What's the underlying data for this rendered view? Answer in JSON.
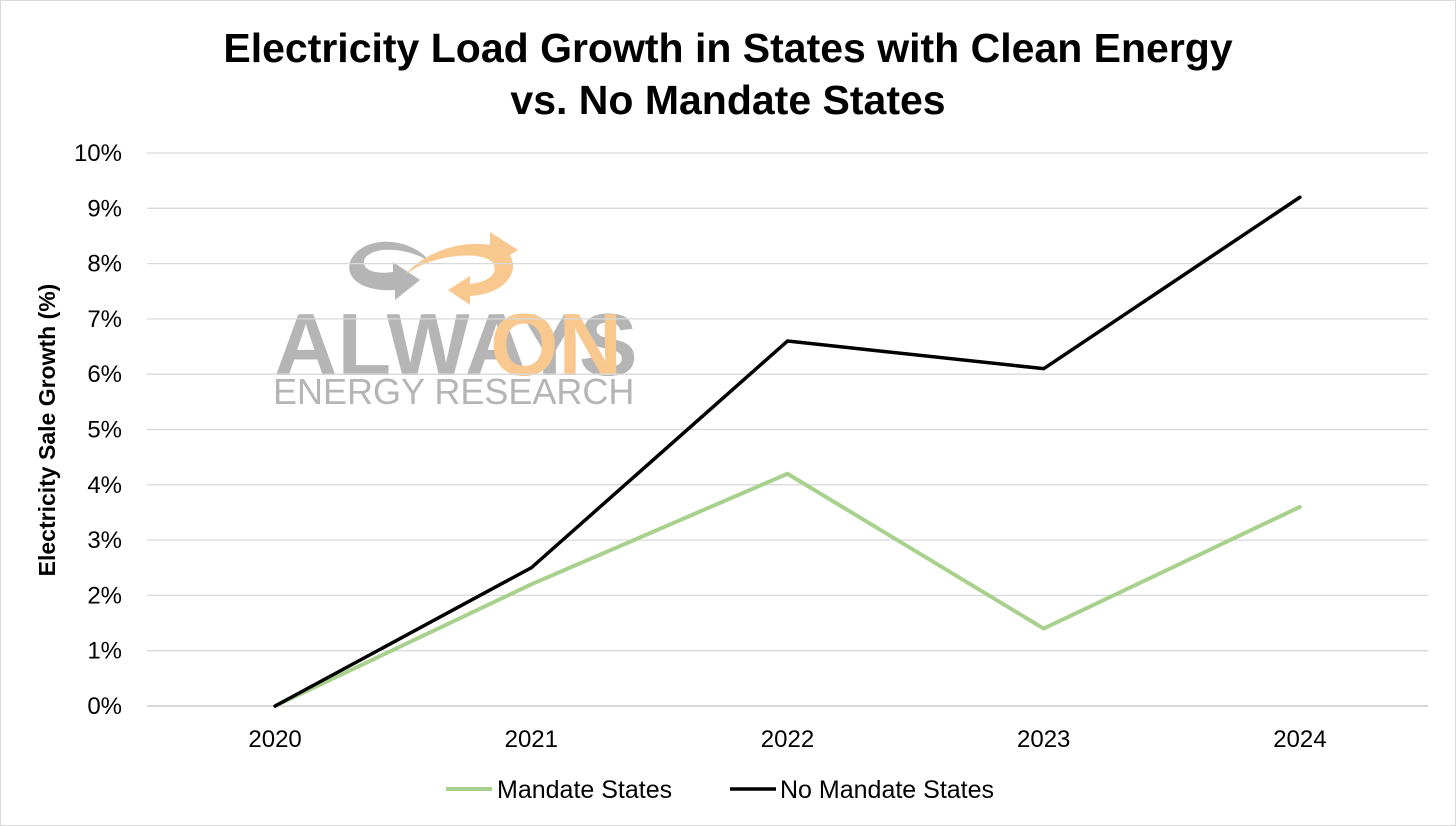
{
  "chart_data": {
    "type": "line",
    "title_line1": "Electricity Load Growth in States with Clean Energy",
    "title_line2": "vs. No Mandate States",
    "xlabel": "",
    "ylabel": "Electricity Sale Growth (%)",
    "categories": [
      "2020",
      "2021",
      "2022",
      "2023",
      "2024"
    ],
    "ylim": [
      0,
      10
    ],
    "yticks": [
      "0%",
      "1%",
      "2%",
      "3%",
      "4%",
      "5%",
      "6%",
      "7%",
      "8%",
      "9%",
      "10%"
    ],
    "grid": true,
    "legend_position": "bottom-center",
    "series": [
      {
        "name": "Mandate States",
        "color": "#a9d18e",
        "values": [
          0,
          2.2,
          4.2,
          1.4,
          3.6
        ]
      },
      {
        "name": "No Mandate States",
        "color": "#000000",
        "values": [
          0,
          2.5,
          6.6,
          6.1,
          9.2
        ]
      }
    ]
  },
  "watermark": {
    "word1": "ALWAYS",
    "word2": "ON",
    "subtitle": "ENERGY RESEARCH",
    "gray_color": "#b5b5b5",
    "accent_color": "#f9c88e"
  }
}
